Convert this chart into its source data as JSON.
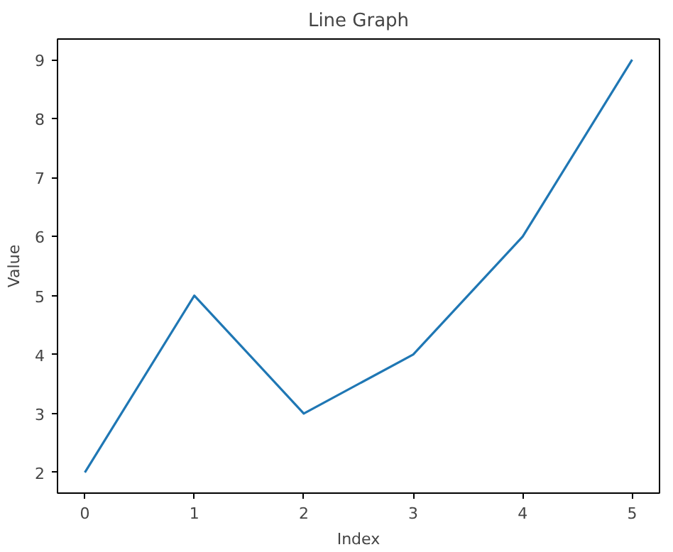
{
  "chart_data": {
    "type": "line",
    "title": "Line Graph",
    "xlabel": "Index",
    "ylabel": "Value",
    "x": [
      0,
      1,
      2,
      3,
      4,
      5
    ],
    "series": [
      {
        "color": "#1f77b4",
        "values": [
          2,
          5,
          3,
          4,
          6,
          9
        ]
      }
    ],
    "xlim": [
      -0.25,
      5.25
    ],
    "ylim": [
      1.65,
      9.35
    ],
    "xticks": [
      0,
      1,
      2,
      3,
      4,
      5
    ],
    "yticks": [
      2,
      3,
      4,
      5,
      6,
      7,
      8,
      9
    ],
    "grid": false,
    "marker": "none",
    "line_style": "solid"
  }
}
